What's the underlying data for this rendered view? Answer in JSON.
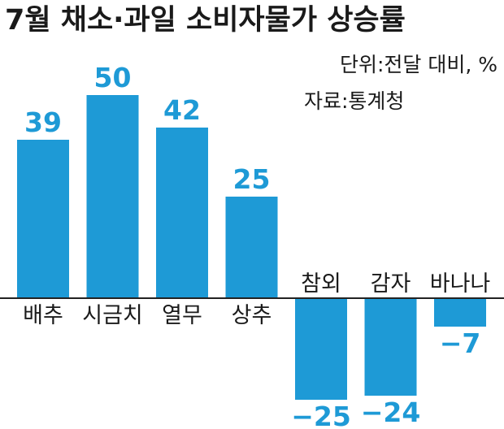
{
  "chart_data": {
    "type": "bar",
    "title": "7월 채소·과일 소비자물가 상승률",
    "unit_note": "단위:전달 대비, %",
    "source_note": "자료:통계청",
    "xlabel": "",
    "ylabel": "",
    "categories": [
      "배추",
      "시금치",
      "열무",
      "상추",
      "참외",
      "감자",
      "바나나"
    ],
    "values": [
      39,
      50,
      42,
      25,
      -25,
      -24,
      -7
    ],
    "value_labels": [
      "39",
      "50",
      "42",
      "25",
      "−25",
      "−24",
      "−7"
    ],
    "ylim": [
      -25,
      50
    ],
    "grid": false,
    "legend": "none",
    "bar_color": "#1e9ad6",
    "label_color": "#1e9ad6",
    "axis_color": "#222222"
  }
}
